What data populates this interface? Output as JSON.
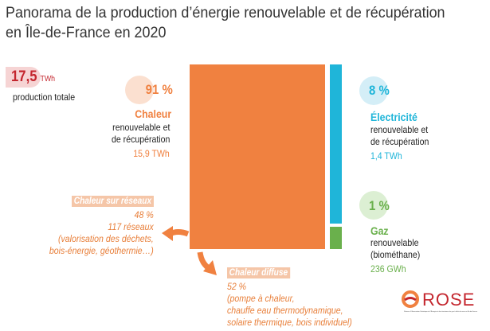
{
  "title": [
    "Panorama de la production d’énergie renouvelable et de récupération",
    "en Île-de-France en 2020"
  ],
  "total": {
    "value": "17,5",
    "unit": "TWh",
    "label": "production totale"
  },
  "segments": [
    {
      "pct": "91 %",
      "share": 91,
      "name": "Chaleur",
      "desc": [
        "renouvelable et",
        "de récupération"
      ],
      "amount": "15,9 TWh",
      "color": "#f08140"
    },
    {
      "pct": "8 %",
      "share": 8,
      "name": "Électricité",
      "desc": [
        "renouvelable et",
        "de récupération"
      ],
      "amount": "1,4 TWh",
      "color": "#1fb5d9"
    },
    {
      "pct": "1 %",
      "share": 1,
      "name": "Gaz",
      "desc": [
        "renouvelable",
        "(biométhane)"
      ],
      "amount": "236 GWh",
      "color": "#6ab04c"
    }
  ],
  "heat_network": {
    "tag": "Chaleur sur réseaux",
    "pct": "48 %",
    "count": "117 réseaux",
    "desc": [
      "(valorisation des déchets,",
      "bois-énergie, géothermie…)"
    ]
  },
  "heat_diffuse": {
    "tag": "Chaleur diffuse",
    "pct": "52 %",
    "desc": [
      "(pompe à chaleur,",
      "chauffe eau thermodynamique,",
      "solaire thermique, bois individuel)"
    ]
  },
  "logo": {
    "name": "ROSE",
    "subtitle": "Réseau d’Observation Statistique de l’Énergie et des émissions de gaz à effet de serre en Île-de-France"
  }
}
